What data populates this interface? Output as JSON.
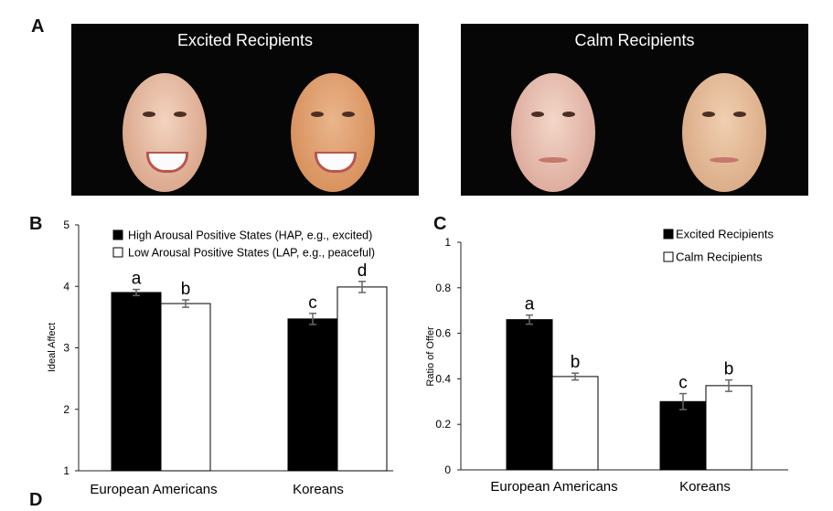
{
  "panels": {
    "a": "A",
    "b": "B",
    "c": "C",
    "d": "D"
  },
  "photos": {
    "left_title": "Excited Recipients",
    "right_title": "Calm Recipients"
  },
  "chart_data": [
    {
      "type": "bar",
      "panel": "B",
      "title": "",
      "xlabel": "",
      "ylabel": "Ideal Affect",
      "ylim": [
        1,
        5
      ],
      "yticks": [
        1,
        2,
        3,
        4,
        5
      ],
      "categories": [
        "European Americans",
        "Koreans"
      ],
      "legend_position": "top",
      "series": [
        {
          "name": "High Arousal Positive States (HAP, e.g., excited)",
          "color": "#000000",
          "values": [
            3.9,
            3.47
          ],
          "errors": [
            0.05,
            0.09
          ],
          "labels": [
            "a",
            "c"
          ]
        },
        {
          "name": "Low Arousal Positive States (LAP, e.g., peaceful)",
          "color": "#ffffff",
          "values": [
            3.72,
            3.99
          ],
          "errors": [
            0.06,
            0.09
          ],
          "labels": [
            "b",
            "d"
          ]
        }
      ]
    },
    {
      "type": "bar",
      "panel": "C",
      "title": "",
      "xlabel": "",
      "ylabel": "Ratio of Offer",
      "ylim": [
        0,
        1
      ],
      "yticks": [
        "0",
        "0.2",
        "0.4",
        "0.6",
        "0.8",
        "1"
      ],
      "categories": [
        "European Americans",
        "Koreans"
      ],
      "legend_position": "top-right",
      "series": [
        {
          "name": "Excited Recipients",
          "color": "#000000",
          "values": [
            0.66,
            0.3
          ],
          "errors": [
            0.02,
            0.035
          ],
          "labels": [
            "a",
            "c"
          ]
        },
        {
          "name": "Calm Recipients",
          "color": "#ffffff",
          "values": [
            0.41,
            0.37
          ],
          "errors": [
            0.015,
            0.025
          ],
          "labels": [
            "b",
            "b"
          ]
        }
      ]
    }
  ]
}
